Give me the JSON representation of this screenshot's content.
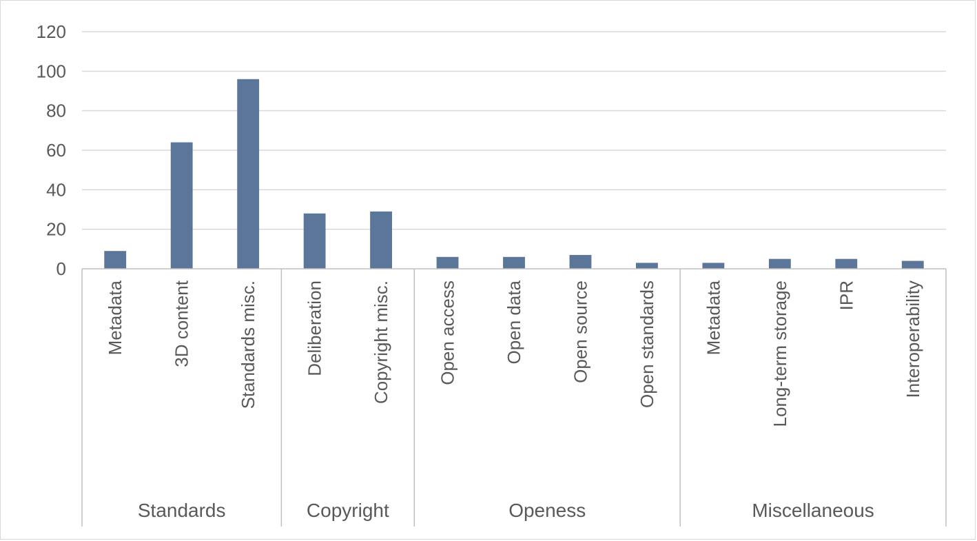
{
  "chart_data": {
    "type": "bar",
    "title": "",
    "xlabel": "",
    "ylabel": "",
    "ylim": [
      0,
      120
    ],
    "yticks": [
      0,
      20,
      40,
      60,
      80,
      100,
      120
    ],
    "grid": true,
    "legend": "none",
    "colors": {
      "bar": "#5b7699",
      "grid": "#d9d9d9",
      "axis": "#bfbfbf",
      "text": "#595959"
    },
    "groups": [
      {
        "name": "Standards",
        "categories": [
          "Metadata",
          "3D content",
          "Standards misc."
        ],
        "values": [
          9,
          64,
          96
        ]
      },
      {
        "name": "Copyright",
        "categories": [
          "Deliberation",
          "Copyright misc."
        ],
        "values": [
          28,
          29
        ]
      },
      {
        "name": "Openess",
        "categories": [
          "Open access",
          "Open data",
          "Open source",
          "Open standards"
        ],
        "values": [
          6,
          6,
          7,
          3
        ]
      },
      {
        "name": "Miscellaneous",
        "categories": [
          "Metadata",
          "Long-term storage",
          "IPR",
          "Interoperability"
        ],
        "values": [
          3,
          5,
          5,
          4
        ]
      }
    ]
  }
}
